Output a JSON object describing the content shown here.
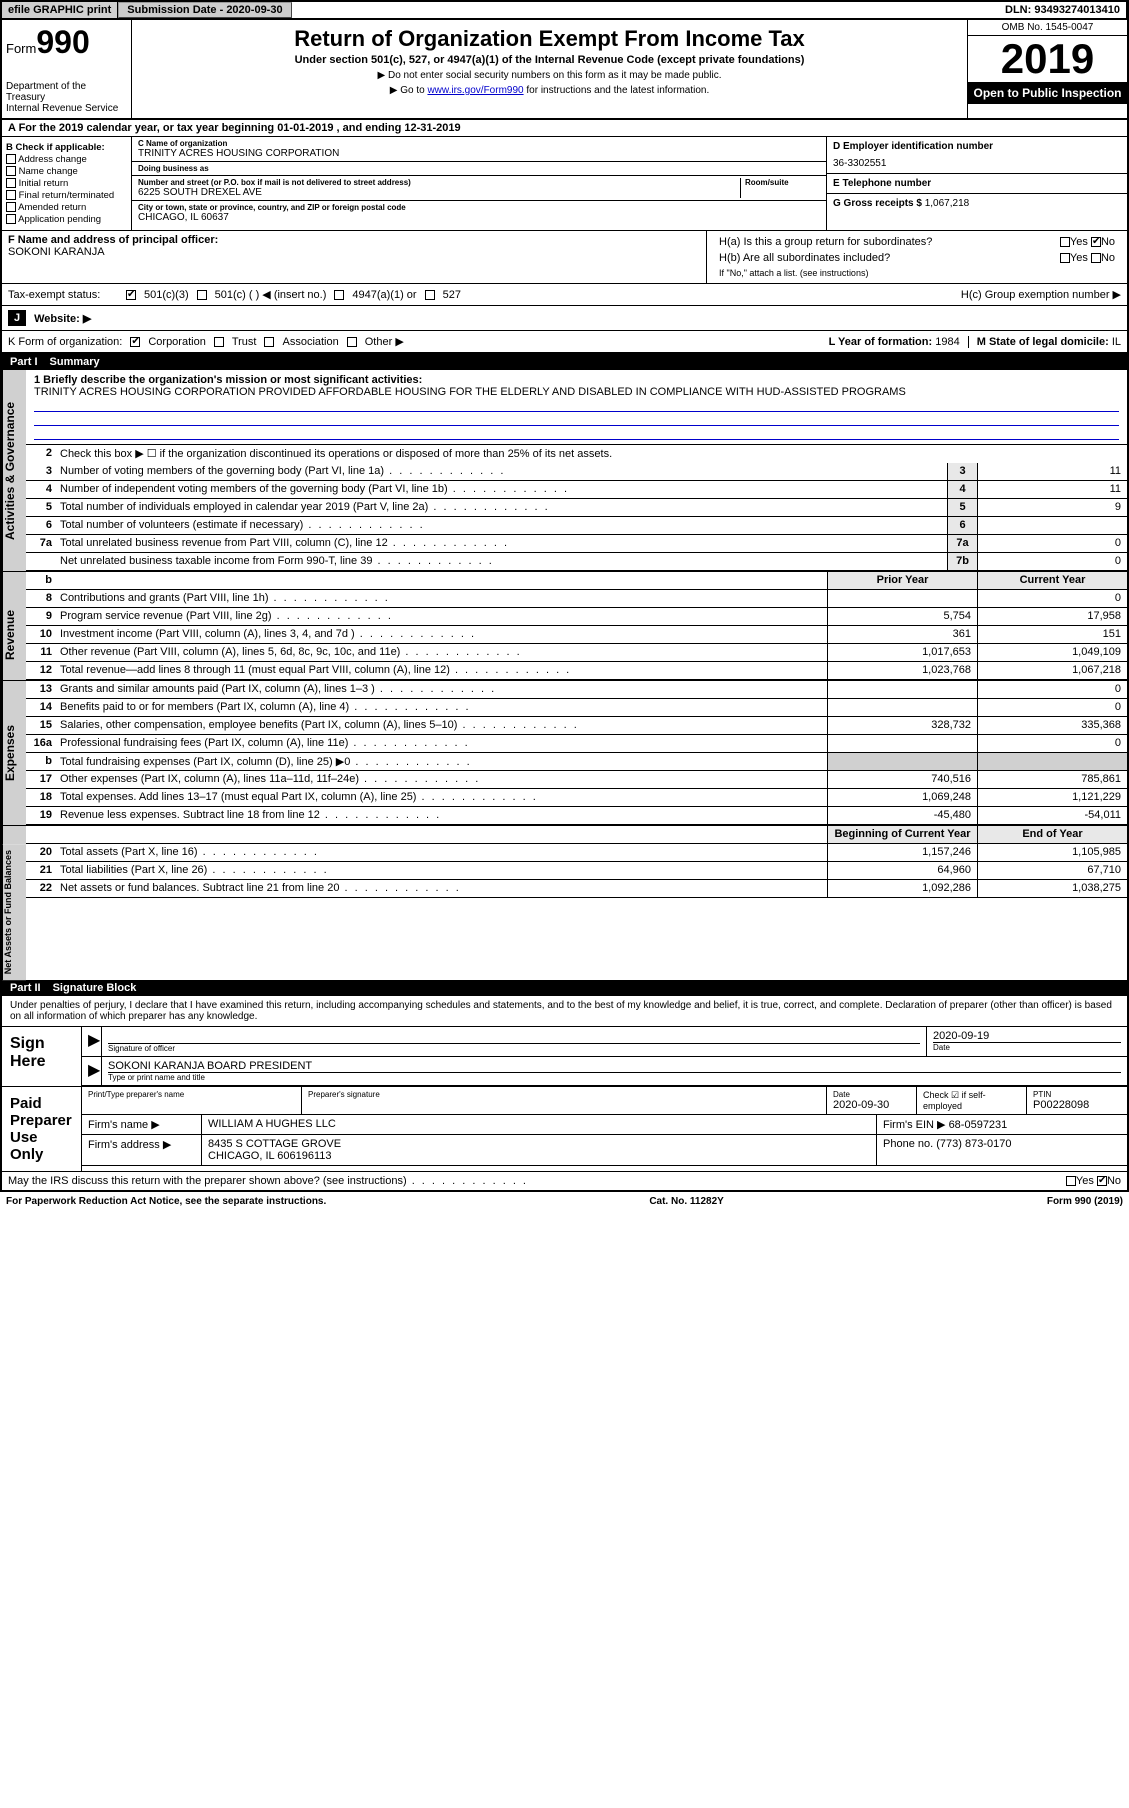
{
  "topbar": {
    "efile": "efile GRAPHIC print",
    "sub_label": "Submission Date - 2020-09-30",
    "dln": "DLN: 93493274013410"
  },
  "header": {
    "form_prefix": "Form",
    "form_num": "990",
    "title": "Return of Organization Exempt From Income Tax",
    "subtitle": "Under section 501(c), 527, or 4947(a)(1) of the Internal Revenue Code (except private foundations)",
    "note1": "▶ Do not enter social security numbers on this form as it may be made public.",
    "note2_pre": "▶ Go to ",
    "note2_link": "www.irs.gov/Form990",
    "note2_post": " for instructions and the latest information.",
    "dept": "Department of the Treasury\nInternal Revenue Service",
    "omb": "OMB No. 1545-0047",
    "year": "2019",
    "inspect": "Open to Public Inspection"
  },
  "period": "A For the 2019 calendar year, or tax year beginning 01-01-2019   , and ending 12-31-2019",
  "sectionB": {
    "label": "B Check if applicable:",
    "items": [
      "Address change",
      "Name change",
      "Initial return",
      "Final return/terminated",
      "Amended return",
      "Application pending"
    ]
  },
  "sectionC": {
    "name_lbl": "C Name of organization",
    "name": "TRINITY ACRES HOUSING CORPORATION",
    "dba_lbl": "Doing business as",
    "dba": "",
    "addr_lbl": "Number and street (or P.O. box if mail is not delivered to street address)",
    "room_lbl": "Room/suite",
    "addr": "6225 SOUTH DREXEL AVE",
    "city_lbl": "City or town, state or province, country, and ZIP or foreign postal code",
    "city": "CHICAGO, IL  60637"
  },
  "sectionD": {
    "lbl": "D Employer identification number",
    "val": "36-3302551"
  },
  "sectionE": {
    "lbl": "E Telephone number",
    "val": ""
  },
  "sectionG": {
    "lbl": "G Gross receipts $",
    "val": "1,067,218"
  },
  "sectionF": {
    "lbl": "F  Name and address of principal officer:",
    "val": "SOKONI KARANJA"
  },
  "sectionH": {
    "a": "H(a)  Is this a group return for subordinates?",
    "b": "H(b)  Are all subordinates included?",
    "b_note": "If \"No,\" attach a list. (see instructions)",
    "c": "H(c)  Group exemption number ▶"
  },
  "taxStatus": {
    "lbl": "Tax-exempt status:",
    "opts": [
      "501(c)(3)",
      "501(c) (  ) ◀ (insert no.)",
      "4947(a)(1) or",
      "527"
    ]
  },
  "sectionJ": {
    "lbl": "J",
    "key": "Website: ▶"
  },
  "sectionK": {
    "lbl": "K Form of organization:",
    "opts": [
      "Corporation",
      "Trust",
      "Association",
      "Other ▶"
    ]
  },
  "sectionL": {
    "lbl": "L Year of formation:",
    "val": "1984"
  },
  "sectionM": {
    "lbl": "M State of legal domicile:",
    "val": "IL"
  },
  "partI": {
    "num": "Part I",
    "title": "Summary",
    "q1": "1   Briefly describe the organization's mission or most significant activities:",
    "mission": "TRINITY ACRES HOUSING CORPORATION PROVIDED AFFORDABLE HOUSING FOR THE ELDERLY AND DISABLED IN COMPLIANCE WITH HUD-ASSISTED PROGRAMS",
    "q2": "Check this box ▶ ☐  if the organization discontinued its operations or disposed of more than 25% of its net assets.",
    "gov_lines": [
      {
        "n": "3",
        "t": "Number of voting members of the governing body (Part VI, line 1a)",
        "box": "3",
        "v": "11"
      },
      {
        "n": "4",
        "t": "Number of independent voting members of the governing body (Part VI, line 1b)",
        "box": "4",
        "v": "11"
      },
      {
        "n": "5",
        "t": "Total number of individuals employed in calendar year 2019 (Part V, line 2a)",
        "box": "5",
        "v": "9"
      },
      {
        "n": "6",
        "t": "Total number of volunteers (estimate if necessary)",
        "box": "6",
        "v": ""
      },
      {
        "n": "7a",
        "t": "Total unrelated business revenue from Part VIII, column (C), line 12",
        "box": "7a",
        "v": "0"
      },
      {
        "n": "",
        "t": "Net unrelated business taxable income from Form 990-T, line 39",
        "box": "7b",
        "v": "0"
      }
    ],
    "hdr_b": "b",
    "hdr_prior": "Prior Year",
    "hdr_curr": "Current Year",
    "rev_lines": [
      {
        "n": "8",
        "t": "Contributions and grants (Part VIII, line 1h)",
        "p": "",
        "c": "0"
      },
      {
        "n": "9",
        "t": "Program service revenue (Part VIII, line 2g)",
        "p": "5,754",
        "c": "17,958"
      },
      {
        "n": "10",
        "t": "Investment income (Part VIII, column (A), lines 3, 4, and 7d )",
        "p": "361",
        "c": "151"
      },
      {
        "n": "11",
        "t": "Other revenue (Part VIII, column (A), lines 5, 6d, 8c, 9c, 10c, and 11e)",
        "p": "1,017,653",
        "c": "1,049,109"
      },
      {
        "n": "12",
        "t": "Total revenue—add lines 8 through 11 (must equal Part VIII, column (A), line 12)",
        "p": "1,023,768",
        "c": "1,067,218"
      }
    ],
    "exp_lines": [
      {
        "n": "13",
        "t": "Grants and similar amounts paid (Part IX, column (A), lines 1–3 )",
        "p": "",
        "c": "0"
      },
      {
        "n": "14",
        "t": "Benefits paid to or for members (Part IX, column (A), line 4)",
        "p": "",
        "c": "0"
      },
      {
        "n": "15",
        "t": "Salaries, other compensation, employee benefits (Part IX, column (A), lines 5–10)",
        "p": "328,732",
        "c": "335,368"
      },
      {
        "n": "16a",
        "t": "Professional fundraising fees (Part IX, column (A), line 11e)",
        "p": "",
        "c": "0"
      },
      {
        "n": "b",
        "t": "Total fundraising expenses (Part IX, column (D), line 25) ▶0",
        "p": "SHADE",
        "c": "SHADE"
      },
      {
        "n": "17",
        "t": "Other expenses (Part IX, column (A), lines 11a–11d, 11f–24e)",
        "p": "740,516",
        "c": "785,861"
      },
      {
        "n": "18",
        "t": "Total expenses. Add lines 13–17 (must equal Part IX, column (A), line 25)",
        "p": "1,069,248",
        "c": "1,121,229"
      },
      {
        "n": "19",
        "t": "Revenue less expenses. Subtract line 18 from line 12",
        "p": "-45,480",
        "c": "-54,011"
      }
    ],
    "hdr_boy": "Beginning of Current Year",
    "hdr_eoy": "End of Year",
    "net_lines": [
      {
        "n": "20",
        "t": "Total assets (Part X, line 16)",
        "p": "1,157,246",
        "c": "1,105,985"
      },
      {
        "n": "21",
        "t": "Total liabilities (Part X, line 26)",
        "p": "64,960",
        "c": "67,710"
      },
      {
        "n": "22",
        "t": "Net assets or fund balances. Subtract line 21 from line 20",
        "p": "1,092,286",
        "c": "1,038,275"
      }
    ],
    "sidebars": [
      "Activities & Governance",
      "Revenue",
      "Expenses",
      "Net Assets or Fund Balances"
    ]
  },
  "partII": {
    "num": "Part II",
    "title": "Signature Block",
    "intro": "Under penalties of perjury, I declare that I have examined this return, including accompanying schedules and statements, and to the best of my knowledge and belief, it is true, correct, and complete. Declaration of preparer (other than officer) is based on all information of which preparer has any knowledge.",
    "sign_here": "Sign Here",
    "sig_officer": "Signature of officer",
    "sig_date": "2020-09-19",
    "date_lbl": "Date",
    "officer_name": "SOKONI KARANJA  BOARD PRESIDENT",
    "officer_lbl": "Type or print name and title",
    "paid": "Paid Preparer Use Only",
    "prep_name_lbl": "Print/Type preparer's name",
    "prep_sig_lbl": "Preparer's signature",
    "prep_date": "2020-09-30",
    "self_emp": "Check ☑ if self-employed",
    "ptin_lbl": "PTIN",
    "ptin": "P00228098",
    "firm_name_lbl": "Firm's name    ▶",
    "firm_name": "WILLIAM A HUGHES LLC",
    "firm_ein_lbl": "Firm's EIN ▶",
    "firm_ein": "68-0597231",
    "firm_addr_lbl": "Firm's address ▶",
    "firm_addr1": "8435 S COTTAGE GROVE",
    "firm_addr2": "CHICAGO, IL  606196113",
    "phone_lbl": "Phone no.",
    "phone": "(773) 873-0170",
    "discuss": "May the IRS discuss this return with the preparer shown above? (see instructions)"
  },
  "footer": {
    "notice": "For Paperwork Reduction Act Notice, see the separate instructions.",
    "cat": "Cat. No. 11282Y",
    "form": "Form 990 (2019)"
  },
  "yn": {
    "yes": "Yes",
    "no": "No"
  }
}
